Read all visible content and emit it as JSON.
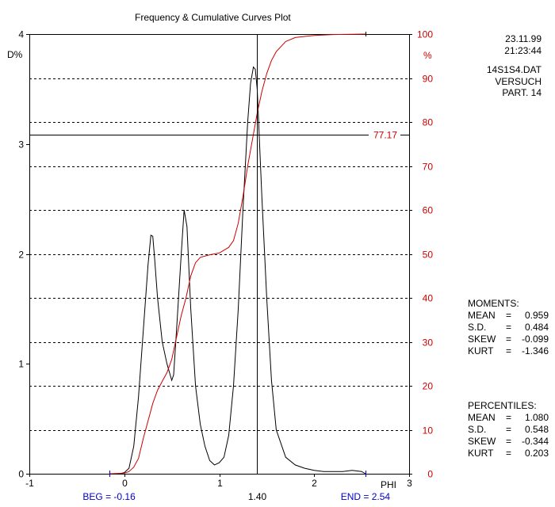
{
  "chart_data": {
    "type": "line",
    "title": "Frequency & Cumulative Curves Plot",
    "xlabel": "PHI",
    "ylabel_left": "D%",
    "ylabel_right": "%",
    "xlim": [
      -1,
      3
    ],
    "ylim_left": [
      0,
      4
    ],
    "ylim_right": [
      0,
      100
    ],
    "x_ticks": [
      "-1",
      "0",
      "1",
      "2",
      "3"
    ],
    "y_left_ticks": [
      "0",
      "1",
      "2",
      "3",
      "4"
    ],
    "y_right_ticks": [
      "0",
      "10",
      "20",
      "30",
      "40",
      "50",
      "60",
      "70",
      "80",
      "90",
      "100"
    ],
    "grid": "dashed horizontal lines every 10% on right axis",
    "series": [
      {
        "axis": "left",
        "color": "#000000",
        "x": [
          -0.15,
          -0.1,
          -0.05,
          0.0,
          0.05,
          0.1,
          0.15,
          0.2,
          0.25,
          0.28,
          0.3,
          0.32,
          0.35,
          0.4,
          0.45,
          0.5,
          0.52,
          0.55,
          0.6,
          0.63,
          0.66,
          0.7,
          0.75,
          0.8,
          0.85,
          0.9,
          0.95,
          1.0,
          1.05,
          1.1,
          1.15,
          1.2,
          1.25,
          1.3,
          1.33,
          1.36,
          1.38,
          1.4,
          1.42,
          1.45,
          1.5,
          1.55,
          1.6,
          1.7,
          1.8,
          1.9,
          2.0,
          2.1,
          2.2,
          2.3,
          2.4,
          2.5,
          2.54
        ],
        "y": [
          0.0,
          0.0,
          0.0,
          0.01,
          0.05,
          0.25,
          0.7,
          1.3,
          1.9,
          2.17,
          2.16,
          1.95,
          1.6,
          1.2,
          1.0,
          0.85,
          0.9,
          1.3,
          2.0,
          2.4,
          2.25,
          1.5,
          0.8,
          0.45,
          0.25,
          0.12,
          0.08,
          0.1,
          0.15,
          0.35,
          0.8,
          1.5,
          2.4,
          3.2,
          3.55,
          3.7,
          3.68,
          3.5,
          3.1,
          2.5,
          1.6,
          0.85,
          0.4,
          0.15,
          0.08,
          0.05,
          0.03,
          0.02,
          0.02,
          0.02,
          0.03,
          0.02,
          0.0
        ]
      },
      {
        "axis": "right",
        "color": "#cc0000",
        "x": [
          -0.15,
          0.0,
          0.05,
          0.1,
          0.15,
          0.2,
          0.25,
          0.3,
          0.35,
          0.4,
          0.45,
          0.5,
          0.55,
          0.6,
          0.65,
          0.7,
          0.75,
          0.8,
          0.9,
          1.0,
          1.1,
          1.15,
          1.2,
          1.25,
          1.3,
          1.35,
          1.4,
          1.45,
          1.5,
          1.55,
          1.6,
          1.7,
          1.8,
          2.0,
          2.2,
          2.54
        ],
        "y": [
          0,
          0.1,
          0.5,
          1.5,
          3.5,
          8,
          12,
          16,
          19,
          21,
          23,
          26,
          31,
          36,
          40,
          45,
          48,
          49.2,
          49.8,
          50.2,
          51.5,
          53,
          57,
          63,
          70,
          76,
          82,
          87,
          91,
          94,
          96,
          98.3,
          99.2,
          99.7,
          99.9,
          100
        ]
      }
    ],
    "markers": {
      "vertical_label": "1.40",
      "horizontal_label": "77.17",
      "beg_label": "BEG = -0.16",
      "end_label": "END = 2.54"
    }
  },
  "info": {
    "date": "23.11.99",
    "time": "21:23:44",
    "file": "14S1S4.DAT",
    "experiment": "VERSUCH",
    "part": "PART. 14"
  },
  "moments": {
    "title": "MOMENTS:",
    "rows": [
      {
        "k": "MEAN",
        "v": "0.959"
      },
      {
        "k": "S.D.",
        "v": "0.484"
      },
      {
        "k": "SKEW",
        "v": "-0.099"
      },
      {
        "k": "KURT",
        "v": "-1.346"
      }
    ]
  },
  "percentiles": {
    "title": "PERCENTILES:",
    "rows": [
      {
        "k": "MEAN",
        "v": "1.080"
      },
      {
        "k": "S.D.",
        "v": "0.548"
      },
      {
        "k": "SKEW",
        "v": "-0.344"
      },
      {
        "k": "KURT",
        "v": "0.203"
      }
    ]
  },
  "colors": {
    "axis": "#000000",
    "cumulative": "#cc0000",
    "labels_blue": "#0000cc"
  }
}
